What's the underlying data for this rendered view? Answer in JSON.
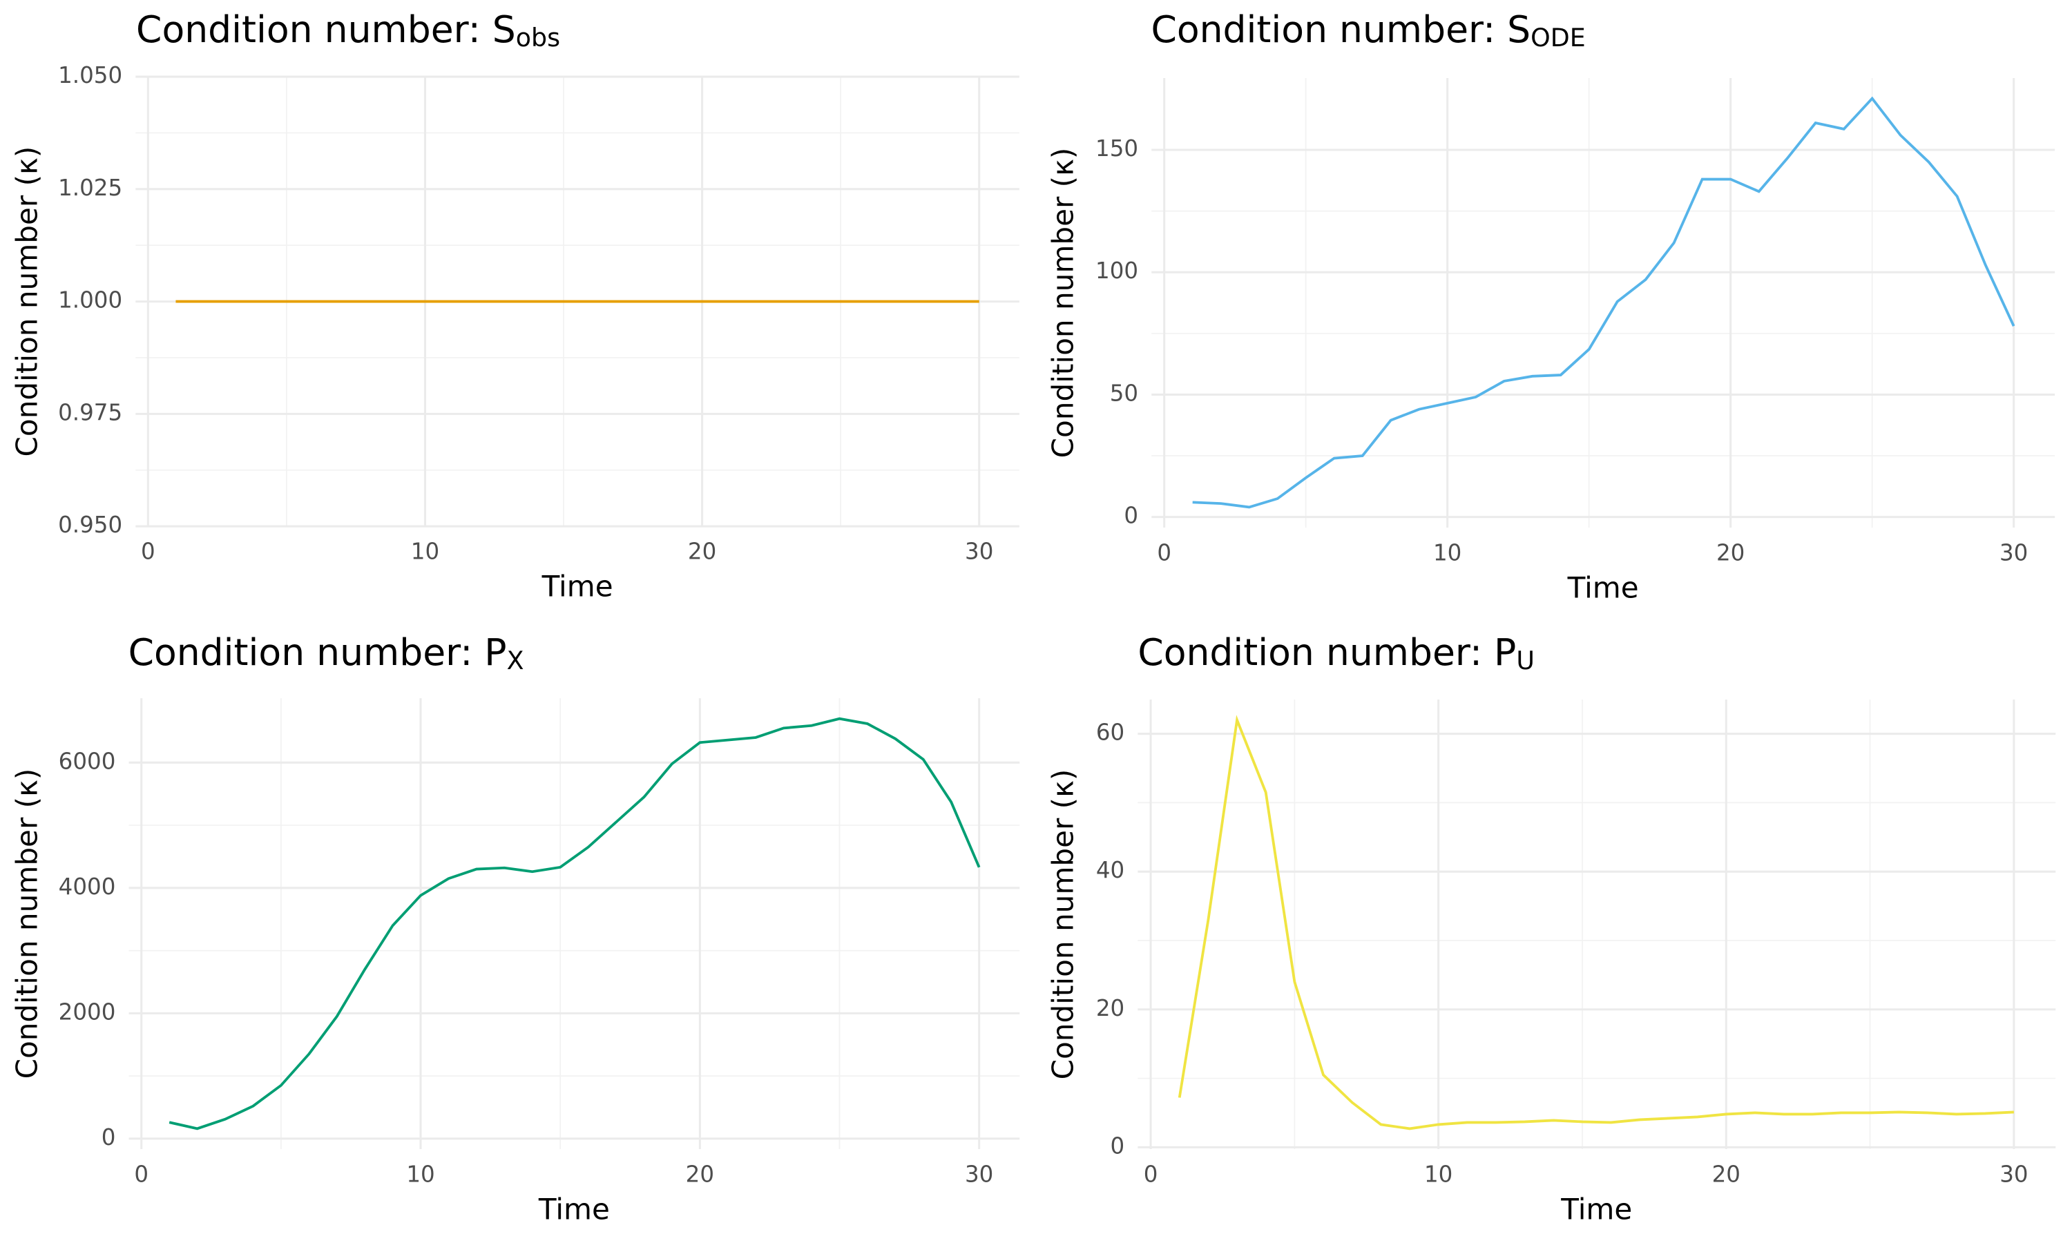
{
  "chart_data": [
    {
      "type": "line",
      "title": "Condition number: S",
      "title_sub": "obs",
      "xlabel": "Time",
      "ylabel": "Condition number (κ)",
      "x": [
        1,
        2,
        3,
        4,
        5,
        6,
        7,
        8,
        9,
        10,
        11,
        12,
        13,
        14,
        15,
        16,
        17,
        18,
        19,
        20,
        21,
        22,
        23,
        24,
        25,
        26,
        27,
        28,
        29,
        30
      ],
      "series": [
        {
          "color": "#E69F00",
          "values": [
            1,
            1,
            1,
            1,
            1,
            1,
            1,
            1,
            1,
            1,
            1,
            1,
            1,
            1,
            1,
            1,
            1,
            1,
            1,
            1,
            1,
            1,
            1,
            1,
            1,
            1,
            1,
            1,
            1,
            1
          ]
        }
      ],
      "xlim": [
        -0.45,
        31.45
      ],
      "xticks": [
        0,
        10,
        20,
        30
      ],
      "ylim": [
        0.95,
        1.05
      ],
      "yticks": [
        {
          "value": 0.95,
          "label": "0.950"
        },
        0.975,
        {
          "value": 1,
          "label": "1.000"
        },
        1.025,
        {
          "value": 1.05,
          "label": "1.050"
        }
      ],
      "grid": true
    },
    {
      "type": "line",
      "title": "Condition number: S",
      "title_sub": "ODE",
      "xlabel": "Time",
      "ylabel": "Condition number (κ)",
      "x": [
        1,
        2,
        3,
        4,
        5,
        6,
        7,
        8,
        9,
        10,
        11,
        12,
        13,
        14,
        15,
        16,
        17,
        18,
        19,
        20,
        21,
        22,
        23,
        24,
        25,
        26,
        27,
        28,
        29,
        30
      ],
      "series": [
        {
          "color": "#56B4E9",
          "values": [
            6,
            5.5,
            4,
            7.5,
            16,
            24,
            25,
            39.5,
            44,
            46.5,
            49,
            55.5,
            57.5,
            58,
            68.5,
            88,
            97,
            112,
            138,
            138,
            133,
            146.5,
            161,
            158.5,
            171,
            156,
            145,
            131,
            103,
            78
          ]
        }
      ],
      "xlim": [
        -0.45,
        31.45
      ],
      "xticks": [
        0,
        10,
        20,
        30
      ],
      "ylim": [
        -4.35,
        179.35
      ],
      "yticks": [
        0,
        50,
        100,
        150
      ],
      "grid": true
    },
    {
      "type": "line",
      "title": "Condition number: P",
      "title_sub": "X",
      "xlabel": "Time",
      "ylabel": "Condition number (κ)",
      "x": [
        1,
        2,
        3,
        4,
        5,
        6,
        7,
        8,
        9,
        10,
        11,
        12,
        13,
        14,
        15,
        16,
        17,
        18,
        19,
        20,
        21,
        22,
        23,
        24,
        25,
        26,
        27,
        28,
        29,
        30
      ],
      "series": [
        {
          "color": "#009E73",
          "values": [
            260,
            160,
            310,
            520,
            850,
            1350,
            1950,
            2700,
            3400,
            3880,
            4150,
            4300,
            4320,
            4260,
            4330,
            4650,
            5050,
            5450,
            5980,
            6320,
            6360,
            6400,
            6550,
            6590,
            6700,
            6620,
            6380,
            6050,
            5370,
            4330
          ]
        }
      ],
      "xlim": [
        -0.45,
        31.45
      ],
      "xticks": [
        0,
        10,
        20,
        30
      ],
      "ylim": [
        -167,
        7027
      ],
      "yticks": [
        0,
        2000,
        4000,
        6000
      ],
      "grid": true
    },
    {
      "type": "line",
      "title": "Condition number: P",
      "title_sub": "U",
      "xlabel": "Time",
      "ylabel": "Condition number (κ)",
      "x": [
        1,
        2,
        3,
        4,
        5,
        6,
        7,
        8,
        9,
        10,
        11,
        12,
        13,
        14,
        15,
        16,
        17,
        18,
        19,
        20,
        21,
        22,
        23,
        24,
        25,
        26,
        27,
        28,
        29,
        30
      ],
      "series": [
        {
          "color": "#F0E442",
          "values": [
            7.2,
            33,
            62,
            51.5,
            24,
            10.5,
            6.5,
            3.3,
            2.7,
            3.3,
            3.6,
            3.6,
            3.7,
            3.9,
            3.7,
            3.6,
            4,
            4.2,
            4.4,
            4.8,
            5,
            4.8,
            4.8,
            5,
            5,
            5.1,
            5,
            4.8,
            4.9,
            5.1
          ]
        }
      ],
      "xlim": [
        -0.45,
        31.45
      ],
      "xticks": [
        0,
        10,
        20,
        30
      ],
      "ylim": [
        -0.27,
        64.97
      ],
      "yticks": [
        0,
        20,
        40,
        60
      ],
      "grid": true
    }
  ]
}
